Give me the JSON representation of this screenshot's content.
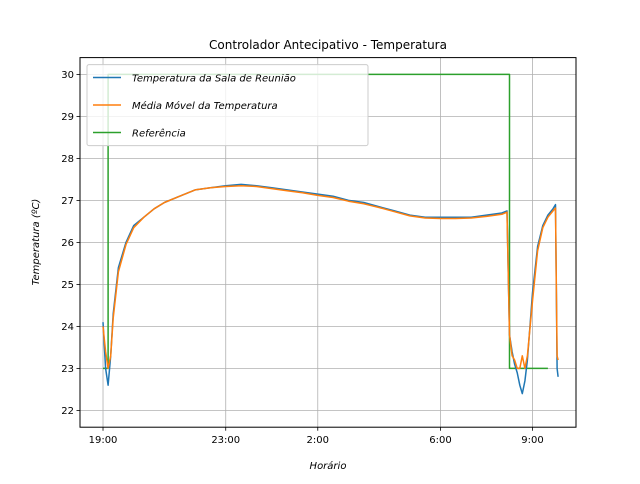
{
  "chart_data": {
    "type": "line",
    "title": "Controlador Antecipativo - Temperatura",
    "xlabel": "Horário",
    "ylabel": "Temperatura (ºC)",
    "xticks": [
      "19:00",
      "23:00",
      "2:00",
      "6:00",
      "9:00"
    ],
    "yticks": [
      "22",
      "23",
      "24",
      "25",
      "26",
      "27",
      "28",
      "29",
      "30"
    ],
    "ylim": [
      21.6,
      30.4
    ],
    "grid": true,
    "legend_position": "top-left",
    "series": [
      {
        "name": "Temperatura da Sala de Reunião",
        "color": "#1f77b4",
        "x": [
          "19:00",
          "19:05",
          "19:10",
          "19:15",
          "19:20",
          "19:30",
          "19:45",
          "20:00",
          "20:20",
          "20:40",
          "21:00",
          "21:30",
          "22:00",
          "22:30",
          "23:00",
          "23:30",
          "0:00",
          "0:30",
          "1:00",
          "1:30",
          "2:00",
          "2:30",
          "3:00",
          "3:30",
          "4:00",
          "4:30",
          "5:00",
          "5:30",
          "6:00",
          "6:30",
          "7:00",
          "7:30",
          "8:00",
          "8:10",
          "8:15",
          "8:20",
          "8:25",
          "8:30",
          "8:35",
          "8:40",
          "8:45",
          "8:50",
          "9:00",
          "9:10",
          "9:20",
          "9:30",
          "9:40",
          "9:45",
          "9:48",
          "9:50"
        ],
        "values": [
          24.1,
          23.0,
          22.6,
          23.3,
          24.3,
          25.4,
          26.0,
          26.4,
          26.6,
          26.8,
          26.95,
          27.1,
          27.25,
          27.3,
          27.35,
          27.38,
          27.35,
          27.3,
          27.25,
          27.2,
          27.15,
          27.1,
          27.0,
          26.95,
          26.85,
          26.75,
          26.65,
          26.6,
          26.6,
          26.6,
          26.6,
          26.65,
          26.7,
          26.75,
          23.8,
          23.4,
          23.1,
          22.9,
          22.6,
          22.4,
          22.7,
          23.2,
          24.8,
          25.9,
          26.4,
          26.65,
          26.8,
          26.9,
          23.0,
          22.8
        ]
      },
      {
        "name": "Média Móvel da Temperatura",
        "color": "#ff7f0e",
        "x": [
          "19:00",
          "19:05",
          "19:10",
          "19:15",
          "19:20",
          "19:30",
          "19:45",
          "20:00",
          "20:20",
          "20:40",
          "21:00",
          "21:30",
          "22:00",
          "22:30",
          "23:00",
          "23:30",
          "0:00",
          "0:30",
          "1:00",
          "1:30",
          "2:00",
          "2:30",
          "3:00",
          "3:30",
          "4:00",
          "4:30",
          "5:00",
          "5:30",
          "6:00",
          "6:30",
          "7:00",
          "7:30",
          "8:00",
          "8:10",
          "8:15",
          "8:20",
          "8:25",
          "8:30",
          "8:35",
          "8:40",
          "8:45",
          "8:50",
          "9:00",
          "9:10",
          "9:20",
          "9:30",
          "9:40",
          "9:45",
          "9:48",
          "9:50"
        ],
        "values": [
          24.0,
          23.4,
          23.0,
          23.3,
          24.2,
          25.3,
          25.95,
          26.35,
          26.6,
          26.8,
          26.95,
          27.1,
          27.25,
          27.3,
          27.33,
          27.35,
          27.33,
          27.28,
          27.23,
          27.18,
          27.12,
          27.07,
          26.98,
          26.92,
          26.83,
          26.73,
          26.63,
          26.58,
          26.57,
          26.57,
          26.58,
          26.62,
          26.67,
          26.72,
          23.8,
          23.3,
          23.2,
          23.0,
          23.0,
          23.3,
          23.0,
          23.3,
          24.6,
          25.8,
          26.35,
          26.6,
          26.75,
          26.82,
          23.3,
          23.2
        ]
      },
      {
        "name": "Referência",
        "color": "#2ca02c",
        "x": [
          "19:00",
          "19:10",
          "19:10",
          "8:15",
          "8:15",
          "9:30"
        ],
        "values": [
          23.0,
          23.0,
          30.0,
          30.0,
          23.0,
          23.0
        ]
      }
    ]
  }
}
